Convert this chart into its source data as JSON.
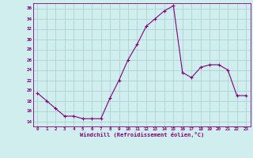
{
  "x": [
    0,
    1,
    2,
    3,
    4,
    5,
    6,
    7,
    8,
    9,
    10,
    11,
    12,
    13,
    14,
    15,
    16,
    17,
    18,
    19,
    20,
    21,
    22,
    23
  ],
  "y": [
    19.5,
    18,
    16.5,
    15,
    15,
    14.5,
    14.5,
    14.5,
    18.5,
    22,
    26,
    29,
    32.5,
    34,
    35.5,
    36.5,
    23.5,
    22.5,
    24.5,
    25,
    25,
    24,
    19,
    19
  ],
  "line_color": "#800080",
  "marker": "+",
  "marker_size": 3,
  "bg_color": "#d0eeee",
  "grid_color": "#aacccc",
  "xlabel": "Windchill (Refroidissement éolien,°C)",
  "xlabel_color": "#800080",
  "tick_color": "#800080",
  "ylim": [
    13,
    37
  ],
  "xlim": [
    -0.5,
    23.5
  ],
  "yticks": [
    14,
    16,
    18,
    20,
    22,
    24,
    26,
    28,
    30,
    32,
    34,
    36
  ],
  "xticks": [
    0,
    1,
    2,
    3,
    4,
    5,
    6,
    7,
    8,
    9,
    10,
    11,
    12,
    13,
    14,
    15,
    16,
    17,
    18,
    19,
    20,
    21,
    22,
    23
  ]
}
